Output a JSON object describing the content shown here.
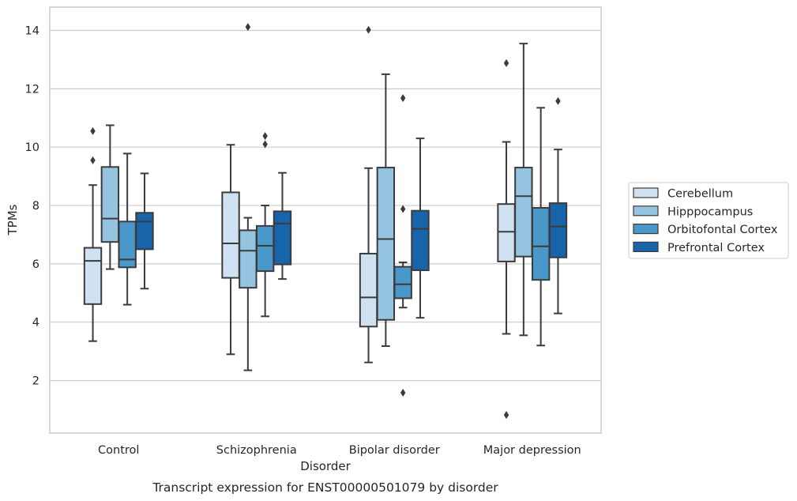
{
  "chart_data": {
    "type": "box",
    "caption": "Transcript expression for ENST00000501079 by disorder",
    "xlabel": "Disorder",
    "ylabel": "TPMs",
    "ylim": [
      0.2,
      14.8
    ],
    "yticks": [
      2,
      4,
      6,
      8,
      10,
      12,
      14
    ],
    "grid": true,
    "legend_position": "right",
    "categories": [
      "Control",
      "Schizophrenia",
      "Bipolar disorder",
      "Major depression"
    ],
    "series": [
      {
        "name": "Cerebellum",
        "color": "#d0e1f2",
        "boxes": [
          {
            "whislo": 3.35,
            "q1": 4.62,
            "med": 6.1,
            "q3": 6.55,
            "whishi": 8.7,
            "fliers": [
              9.55,
              10.55
            ]
          },
          {
            "whislo": 2.9,
            "q1": 5.52,
            "med": 6.7,
            "q3": 8.45,
            "whishi": 10.08,
            "fliers": []
          },
          {
            "whislo": 2.62,
            "q1": 3.85,
            "med": 4.85,
            "q3": 6.35,
            "whishi": 9.28,
            "fliers": [
              14.02
            ]
          },
          {
            "whislo": 3.6,
            "q1": 6.08,
            "med": 7.1,
            "q3": 8.05,
            "whishi": 10.18,
            "fliers": [
              12.88,
              0.82
            ]
          }
        ]
      },
      {
        "name": "Hipppocampus",
        "color": "#94c4df",
        "boxes": [
          {
            "whislo": 5.82,
            "q1": 6.75,
            "med": 7.55,
            "q3": 9.32,
            "whishi": 10.75,
            "fliers": []
          },
          {
            "whislo": 2.35,
            "q1": 5.18,
            "med": 6.45,
            "q3": 7.15,
            "whishi": 7.58,
            "fliers": [
              14.12
            ]
          },
          {
            "whislo": 3.18,
            "q1": 4.08,
            "med": 6.85,
            "q3": 9.3,
            "whishi": 12.5,
            "fliers": []
          },
          {
            "whislo": 3.55,
            "q1": 6.25,
            "med": 8.32,
            "q3": 9.3,
            "whishi": 13.55,
            "fliers": []
          }
        ]
      },
      {
        "name": "Orbitofontal Cortex",
        "color": "#4a98c9",
        "boxes": [
          {
            "whislo": 4.6,
            "q1": 5.88,
            "med": 6.15,
            "q3": 7.45,
            "whishi": 9.78,
            "fliers": []
          },
          {
            "whislo": 4.2,
            "q1": 5.75,
            "med": 6.62,
            "q3": 7.3,
            "whishi": 8.0,
            "fliers": [
              10.1,
              10.38
            ]
          },
          {
            "whislo": 4.5,
            "q1": 4.82,
            "med": 5.3,
            "q3": 5.9,
            "whishi": 6.05,
            "fliers": [
              7.88,
              11.68,
              1.58
            ]
          },
          {
            "whislo": 3.2,
            "q1": 5.45,
            "med": 6.6,
            "q3": 7.92,
            "whishi": 11.35,
            "fliers": []
          }
        ]
      },
      {
        "name": "Prefrontal Cortex",
        "color": "#1764ab",
        "boxes": [
          {
            "whislo": 5.15,
            "q1": 6.5,
            "med": 7.45,
            "q3": 7.75,
            "whishi": 9.1,
            "fliers": []
          },
          {
            "whislo": 5.48,
            "q1": 5.98,
            "med": 7.38,
            "q3": 7.8,
            "whishi": 9.12,
            "fliers": []
          },
          {
            "whislo": 4.15,
            "q1": 5.78,
            "med": 7.2,
            "q3": 7.82,
            "whishi": 10.3,
            "fliers": []
          },
          {
            "whislo": 4.3,
            "q1": 6.22,
            "med": 7.28,
            "q3": 8.08,
            "whishi": 9.92,
            "fliers": [
              11.58
            ]
          }
        ]
      }
    ]
  }
}
